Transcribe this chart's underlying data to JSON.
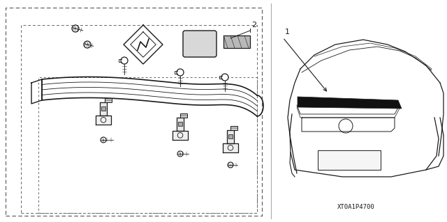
{
  "bg_color": "#ffffff",
  "line_color": "#1a1a1a",
  "fig_width": 6.4,
  "fig_height": 3.19,
  "dpi": 100,
  "part_number_text": "XT0A1P4700",
  "label_1": "1",
  "label_2": "2"
}
